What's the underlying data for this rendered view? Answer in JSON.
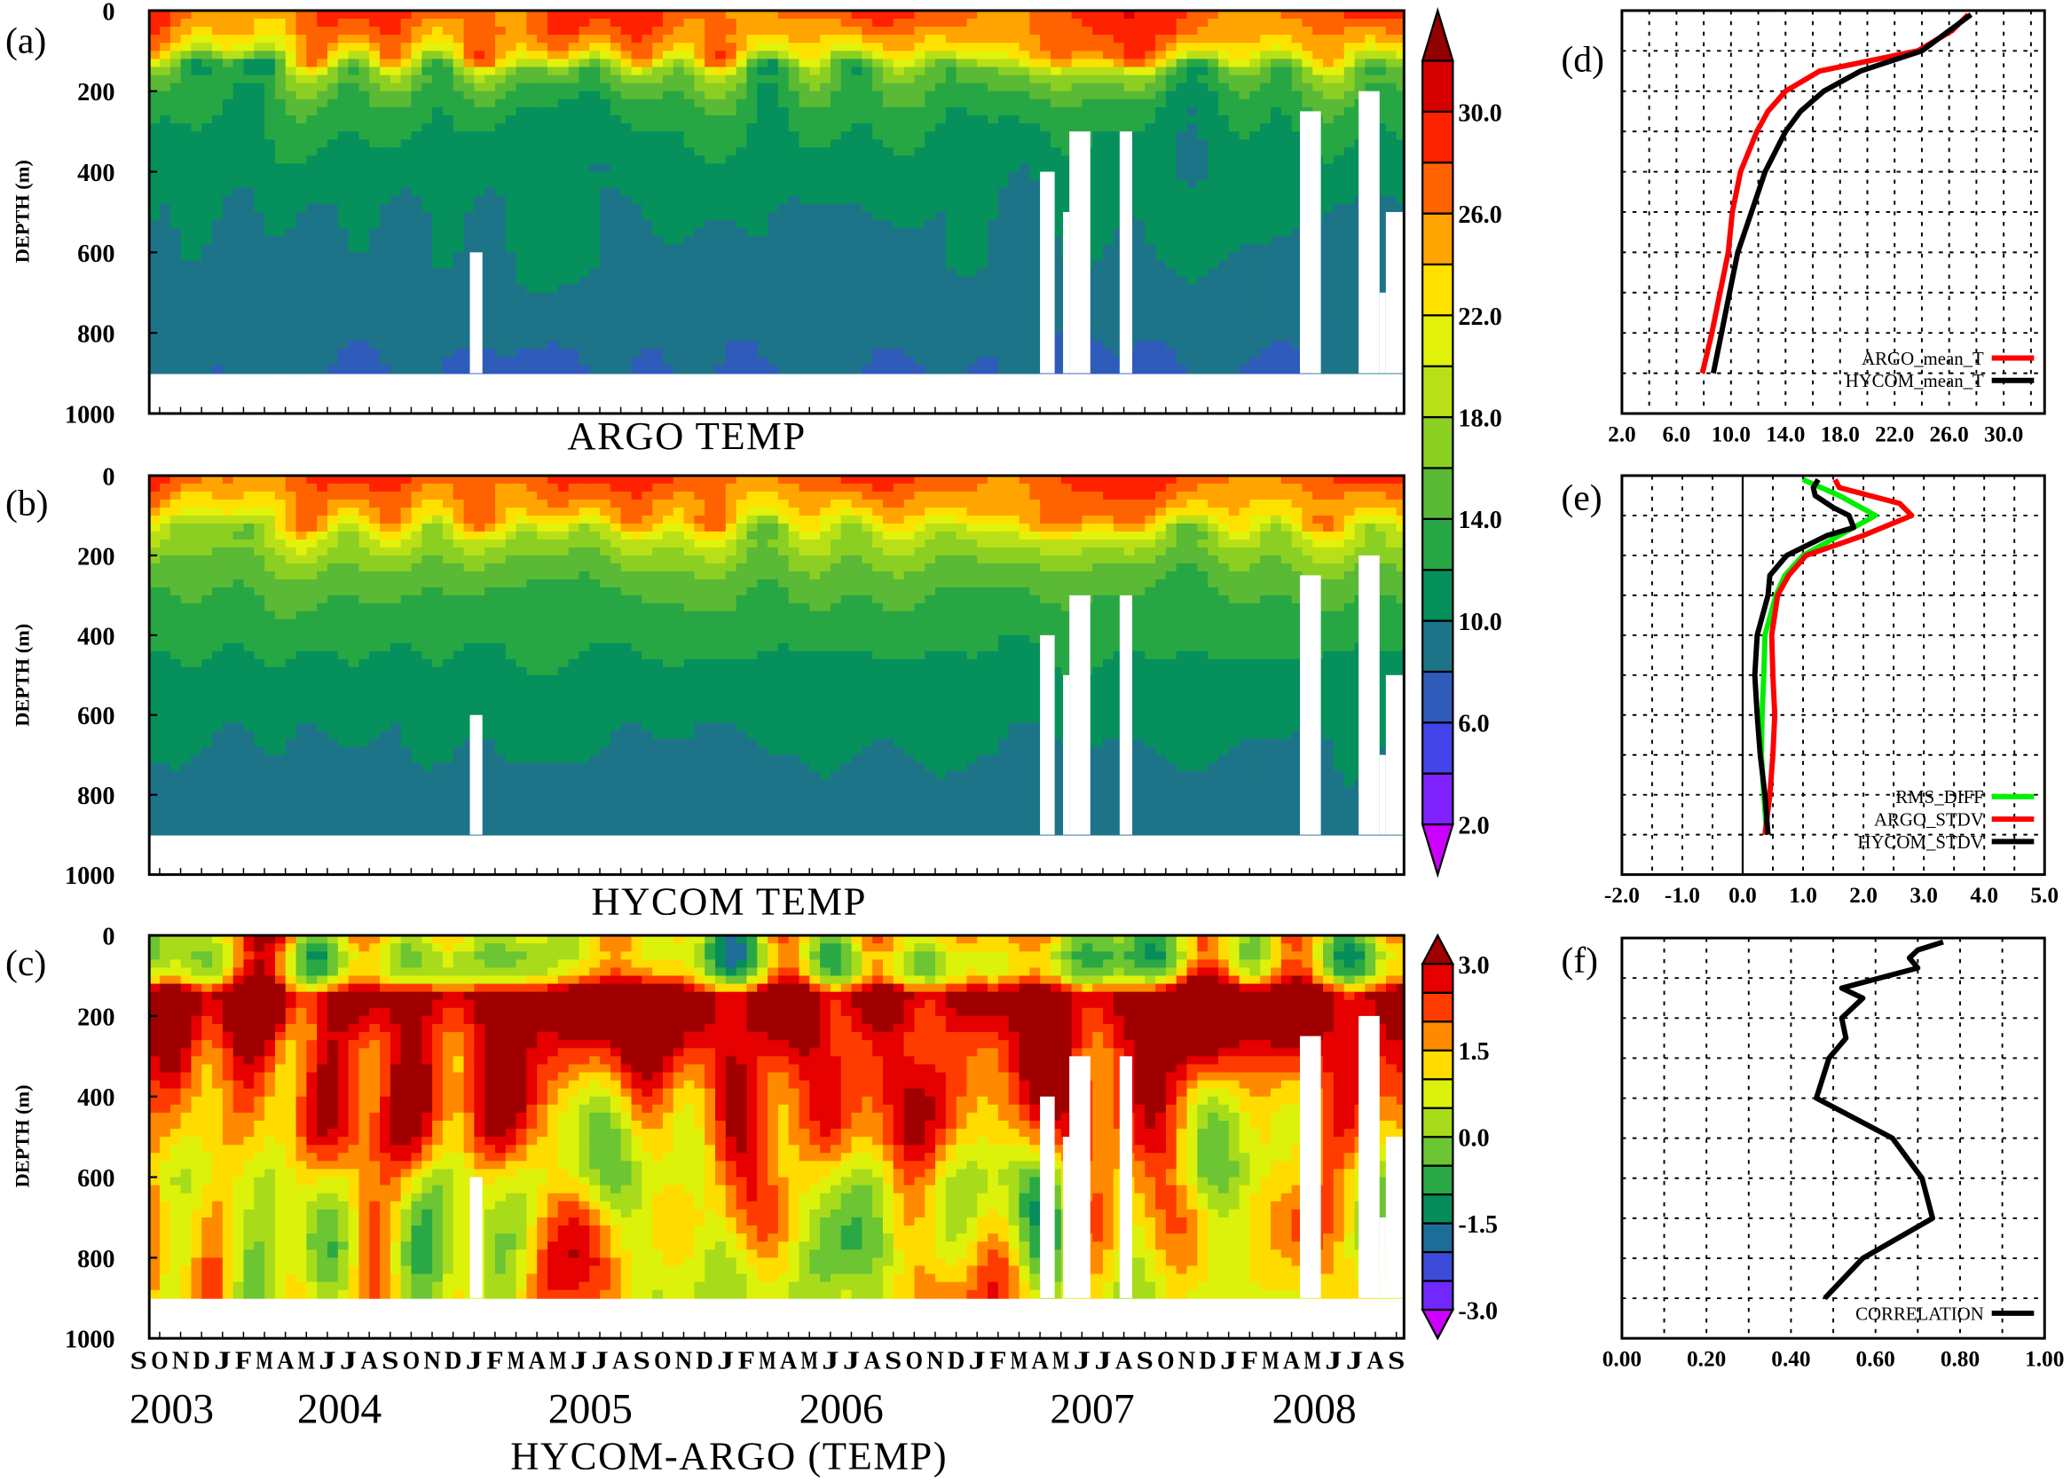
{
  "time_axis": {
    "month_labels": [
      "S",
      "O",
      "N",
      "D",
      "J",
      "F",
      "M",
      "A",
      "M",
      "J",
      "J",
      "A",
      "S",
      "O",
      "N",
      "D",
      "J",
      "F",
      "M",
      "A",
      "M",
      "J",
      "J",
      "A",
      "S",
      "O",
      "N",
      "D",
      "J",
      "F",
      "M",
      "A",
      "M",
      "J",
      "J",
      "A",
      "S",
      "O",
      "N",
      "D",
      "J",
      "F",
      "M",
      "A",
      "M",
      "J",
      "J",
      "A",
      "S",
      "O",
      "N",
      "D",
      "J",
      "F",
      "M",
      "A",
      "M",
      "J",
      "J",
      "A",
      "S"
    ],
    "year_labels": [
      "2003",
      "2004",
      "2005",
      "2006",
      "2007",
      "2008"
    ],
    "range": [
      "2003-09",
      "2008-09"
    ]
  },
  "colorbars": {
    "temp": {
      "levels": [
        2,
        4,
        6,
        8,
        10,
        12,
        14,
        16,
        18,
        20,
        22,
        24,
        26,
        28,
        30,
        32
      ],
      "tick_labels": [
        "2.0",
        "6.0",
        "10.0",
        "14.0",
        "18.0",
        "22.0",
        "26.0",
        "30.0"
      ],
      "tick_values": [
        2,
        6,
        10,
        14,
        18,
        22,
        26,
        30
      ],
      "colors": [
        "#cc00ff",
        "#7f22ff",
        "#4444ea",
        "#2f5bbb",
        "#1d7488",
        "#05905c",
        "#27a744",
        "#5ab935",
        "#8ccf23",
        "#b9e017",
        "#e2f20a",
        "#ffe100",
        "#ffa400",
        "#ff6200",
        "#ff2200",
        "#d60000",
        "#920000"
      ]
    },
    "diff": {
      "levels": [
        -3,
        -2.5,
        -2,
        -1.5,
        -1,
        -0.5,
        0,
        0.5,
        1,
        1.5,
        2,
        2.5,
        3
      ],
      "tick_labels": [
        "-3.0",
        "-1.5",
        "0.0",
        "1.5",
        "3.0"
      ],
      "tick_values": [
        -3,
        -1.5,
        0,
        1.5,
        3
      ],
      "colors": [
        "#cc00ff",
        "#7028ff",
        "#3c4cd8",
        "#1e6d98",
        "#078c5b",
        "#2aa845",
        "#6cc532",
        "#a8dc1b",
        "#ddf20b",
        "#ffdc00",
        "#ff8a00",
        "#ff3c00",
        "#e60000",
        "#a00000"
      ]
    }
  },
  "chart_data": [
    {
      "id": "a",
      "type": "heatmap",
      "panel_label": "(a)",
      "title": "ARGO TEMP",
      "ylabel": "DEPTH (m)",
      "ylim": [
        1000,
        0
      ],
      "yticks": [
        "0",
        "200",
        "400",
        "600",
        "800",
        "1000"
      ],
      "colorbar": "temp",
      "data_depth_max": 900,
      "missing": [
        {
          "from": "2003-09-01",
          "to": "2003-09-15",
          "below": 800
        },
        {
          "from": "2005-01-09",
          "to": "2005-01-27",
          "below": 600
        },
        {
          "from": "2007-04-15",
          "to": "2007-05-06",
          "below": 400
        },
        {
          "from": "2007-05-18",
          "to": "2007-05-27",
          "below": 500
        },
        {
          "from": "2007-05-27",
          "to": "2007-06-27",
          "below": 300
        },
        {
          "from": "2007-08-09",
          "to": "2007-08-27",
          "below": 300
        },
        {
          "from": "2008-04-27",
          "to": "2008-05-27",
          "below": 250
        },
        {
          "from": "2008-07-21",
          "to": "2008-08-21",
          "below": 200
        },
        {
          "from": "2008-08-21",
          "to": "2008-08-30",
          "below": 700
        },
        {
          "from": "2008-08-30",
          "to": "2008-09-30",
          "below": 500
        }
      ]
    },
    {
      "id": "b",
      "type": "heatmap",
      "panel_label": "(b)",
      "title": "HYCOM TEMP",
      "ylabel": "DEPTH (m)",
      "ylim": [
        1000,
        0
      ],
      "yticks": [
        "0",
        "200",
        "400",
        "600",
        "800",
        "1000"
      ],
      "colorbar": "temp",
      "data_depth_max": 900
    },
    {
      "id": "c",
      "type": "heatmap",
      "panel_label": "(c)",
      "title": "HYCOM-ARGO (TEMP)",
      "ylabel": "DEPTH (m)",
      "ylim": [
        1000,
        0
      ],
      "yticks": [
        "0",
        "200",
        "400",
        "600",
        "800",
        "1000"
      ],
      "colorbar": "diff",
      "data_depth_max": 900
    },
    {
      "id": "d",
      "type": "line",
      "panel_label": "(d)",
      "xlim": [
        2,
        33
      ],
      "ylim": [
        1000,
        0
      ],
      "xgrid_step": 2,
      "ygrid_step": 100,
      "grid": true,
      "legend": "bottom-right",
      "xticks": [
        2,
        6,
        10,
        14,
        18,
        22,
        26,
        30
      ],
      "xtick_labels": [
        "2.0",
        "6.0",
        "10.0",
        "14.0",
        "18.0",
        "22.0",
        "26.0",
        "30.0"
      ],
      "series": [
        {
          "name": "ARGO_mean_T",
          "color": "#ff0000",
          "depth": [
            10,
            50,
            100,
            150,
            200,
            250,
            300,
            400,
            500,
            600,
            700,
            800,
            900
          ],
          "values": [
            27.4,
            26.2,
            23.7,
            16.5,
            14.0,
            12.7,
            11.9,
            10.7,
            10.1,
            9.8,
            9.2,
            8.6,
            7.9
          ]
        },
        {
          "name": "HYCOM_mean_T",
          "color": "#000000",
          "depth": [
            10,
            50,
            100,
            150,
            200,
            250,
            300,
            400,
            500,
            600,
            700,
            800,
            900
          ],
          "values": [
            27.6,
            26.0,
            24.0,
            19.5,
            16.8,
            15.1,
            14.0,
            12.5,
            11.5,
            10.5,
            9.9,
            9.3,
            8.7
          ]
        }
      ]
    },
    {
      "id": "e",
      "type": "line",
      "panel_label": "(e)",
      "xlim": [
        -2,
        5
      ],
      "ylim": [
        1000,
        0
      ],
      "xgrid_step": 0.5,
      "ygrid_step": 100,
      "grid": true,
      "legend": "bottom-right",
      "zero_line": 0,
      "xticks": [
        -2,
        -1,
        0,
        1,
        2,
        3,
        4,
        5
      ],
      "xtick_labels": [
        "-2.0",
        "-1.0",
        "0.0",
        "1.0",
        "2.0",
        "3.0",
        "4.0",
        "5.0"
      ],
      "series": [
        {
          "name": "RMS_DIFF",
          "color": "#00ee00",
          "depth": [
            10,
            50,
            100,
            150,
            200,
            250,
            300,
            400,
            500,
            600,
            700,
            800,
            900
          ],
          "values": [
            1.0,
            1.6,
            2.2,
            1.6,
            1.0,
            0.7,
            0.55,
            0.37,
            0.35,
            0.32,
            0.31,
            0.35,
            0.4
          ]
        },
        {
          "name": "ARGO_STDV",
          "color": "#ff0000",
          "depth": [
            10,
            30,
            70,
            100,
            150,
            200,
            250,
            300,
            400,
            500,
            600,
            700,
            800,
            900
          ],
          "values": [
            1.53,
            1.6,
            2.6,
            2.8,
            2.0,
            1.05,
            0.76,
            0.58,
            0.48,
            0.5,
            0.53,
            0.5,
            0.45,
            0.37
          ]
        },
        {
          "name": "HYCOM_STDV",
          "color": "#000000",
          "depth": [
            10,
            30,
            50,
            80,
            100,
            130,
            150,
            200,
            250,
            300,
            400,
            500,
            600,
            700,
            800,
            900
          ],
          "values": [
            1.25,
            1.17,
            1.2,
            1.5,
            1.76,
            1.84,
            1.4,
            0.73,
            0.45,
            0.42,
            0.24,
            0.2,
            0.24,
            0.29,
            0.37,
            0.42
          ]
        }
      ]
    },
    {
      "id": "f",
      "type": "line",
      "panel_label": "(f)",
      "xlim": [
        0,
        1
      ],
      "ylim": [
        1000,
        0
      ],
      "xgrid_step": 0.1,
      "ygrid_step": 100,
      "grid": true,
      "legend": "bottom-right",
      "xticks": [
        0,
        0.2,
        0.4,
        0.6,
        0.8,
        1.0
      ],
      "xtick_labels": [
        "0.00",
        "0.20",
        "0.40",
        "0.60",
        "0.80",
        "1.00"
      ],
      "series": [
        {
          "name": "CORRELATION",
          "color": "#000000",
          "depth": [
            10,
            30,
            50,
            75,
            125,
            150,
            200,
            250,
            300,
            400,
            500,
            600,
            700,
            800,
            900
          ],
          "values": [
            0.76,
            0.7,
            0.68,
            0.7,
            0.52,
            0.57,
            0.52,
            0.53,
            0.49,
            0.46,
            0.64,
            0.71,
            0.735,
            0.57,
            0.48
          ]
        }
      ]
    }
  ]
}
